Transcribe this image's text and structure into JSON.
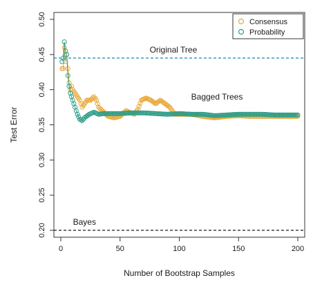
{
  "chart_data": {
    "type": "line",
    "xlabel": "Number of Bootstrap Samples",
    "ylabel": "Test Error",
    "xlim": [
      0,
      200
    ],
    "ylim": [
      0.2,
      0.5
    ],
    "xticks": [
      "0",
      "50",
      "100",
      "150",
      "200"
    ],
    "yticks": [
      "0.20",
      "0.25",
      "0.30",
      "0.35",
      "0.40",
      "0.45",
      "0.50"
    ],
    "grid": false,
    "legend_position": "top-right",
    "marker": "open-circle",
    "reference_lines": [
      {
        "label": "Original Tree",
        "value": 0.445,
        "style": "dashed",
        "color": "#2a8fb5"
      },
      {
        "label": "Bayes",
        "value": 0.2,
        "style": "dashed",
        "color": "#1a1a1a"
      }
    ],
    "annotations": [
      {
        "text": "Bagged Trees",
        "x": 110,
        "y": 0.39
      }
    ],
    "series": [
      {
        "name": "Consensus",
        "color": "#e8a838",
        "keypoints": [
          [
            1,
            0.43
          ],
          [
            2,
            0.43
          ],
          [
            3,
            0.46
          ],
          [
            4,
            0.44
          ],
          [
            5,
            0.45
          ],
          [
            6,
            0.43
          ],
          [
            7,
            0.41
          ],
          [
            8,
            0.4
          ],
          [
            9,
            0.405
          ],
          [
            10,
            0.4
          ],
          [
            12,
            0.395
          ],
          [
            14,
            0.39
          ],
          [
            16,
            0.385
          ],
          [
            18,
            0.375
          ],
          [
            20,
            0.38
          ],
          [
            22,
            0.385
          ],
          [
            25,
            0.385
          ],
          [
            28,
            0.39
          ],
          [
            30,
            0.385
          ],
          [
            32,
            0.375
          ],
          [
            35,
            0.37
          ],
          [
            38,
            0.365
          ],
          [
            40,
            0.362
          ],
          [
            45,
            0.36
          ],
          [
            50,
            0.362
          ],
          [
            55,
            0.37
          ],
          [
            58,
            0.368
          ],
          [
            62,
            0.365
          ],
          [
            65,
            0.372
          ],
          [
            68,
            0.385
          ],
          [
            72,
            0.388
          ],
          [
            76,
            0.385
          ],
          [
            80,
            0.38
          ],
          [
            84,
            0.385
          ],
          [
            88,
            0.38
          ],
          [
            92,
            0.375
          ],
          [
            96,
            0.365
          ],
          [
            100,
            0.365
          ],
          [
            110,
            0.365
          ],
          [
            120,
            0.362
          ],
          [
            130,
            0.36
          ],
          [
            140,
            0.362
          ],
          [
            150,
            0.363
          ],
          [
            160,
            0.362
          ],
          [
            170,
            0.362
          ],
          [
            180,
            0.362
          ],
          [
            190,
            0.362
          ],
          [
            200,
            0.362
          ]
        ]
      },
      {
        "name": "Probability",
        "color": "#2e9c87",
        "keypoints": [
          [
            1,
            0.44
          ],
          [
            2,
            0.445
          ],
          [
            3,
            0.468
          ],
          [
            4,
            0.455
          ],
          [
            5,
            0.45
          ],
          [
            6,
            0.42
          ],
          [
            7,
            0.405
          ],
          [
            8,
            0.395
          ],
          [
            9,
            0.39
          ],
          [
            10,
            0.385
          ],
          [
            12,
            0.375
          ],
          [
            14,
            0.365
          ],
          [
            16,
            0.358
          ],
          [
            18,
            0.356
          ],
          [
            20,
            0.36
          ],
          [
            24,
            0.365
          ],
          [
            28,
            0.368
          ],
          [
            32,
            0.365
          ],
          [
            36,
            0.366
          ],
          [
            40,
            0.366
          ],
          [
            50,
            0.366
          ],
          [
            60,
            0.367
          ],
          [
            70,
            0.367
          ],
          [
            80,
            0.366
          ],
          [
            90,
            0.365
          ],
          [
            100,
            0.366
          ],
          [
            110,
            0.365
          ],
          [
            120,
            0.365
          ],
          [
            130,
            0.363
          ],
          [
            140,
            0.364
          ],
          [
            150,
            0.365
          ],
          [
            160,
            0.365
          ],
          [
            170,
            0.365
          ],
          [
            180,
            0.364
          ],
          [
            190,
            0.364
          ],
          [
            200,
            0.364
          ]
        ]
      }
    ]
  }
}
